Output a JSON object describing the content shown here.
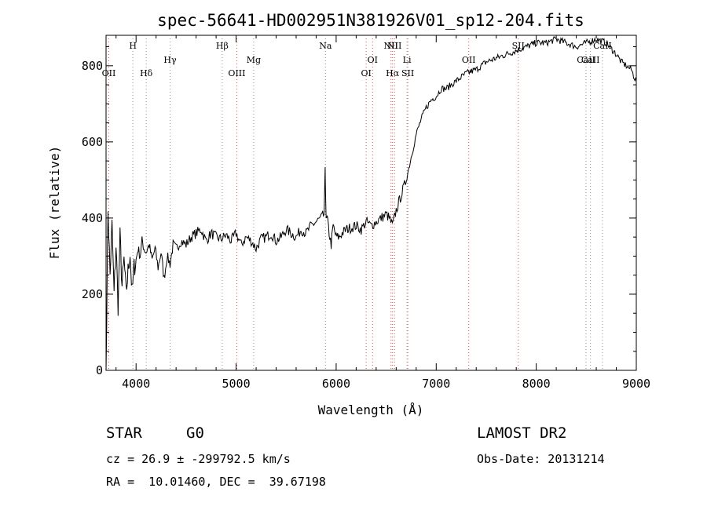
{
  "chart_data": {
    "type": "line",
    "title": "spec-56641-HD002951N381926V01_sp12-204.fits",
    "xlabel": "Wavelength (Å)",
    "ylabel": "Flux (relative)",
    "xlim": [
      3700,
      9000
    ],
    "ylim": [
      0,
      880
    ],
    "x_ticks": [
      4000,
      5000,
      6000,
      7000,
      8000,
      9000
    ],
    "y_ticks": [
      0,
      200,
      400,
      600,
      800
    ],
    "grid": false,
    "series": [
      {
        "x": [
          3700,
          3720,
          3740,
          3760,
          3780,
          3800,
          3820,
          3840,
          3860,
          3880,
          3900,
          3920,
          3940,
          3960,
          3980,
          4000,
          4020,
          4040,
          4060,
          4080,
          4100,
          4130,
          4160,
          4190,
          4220,
          4250,
          4280,
          4310,
          4340,
          4370,
          4400,
          4450,
          4500,
          4550,
          4600,
          4650,
          4700,
          4750,
          4800,
          4850,
          4900,
          4950,
          5000,
          5050,
          5100,
          5150,
          5200,
          5250,
          5300,
          5350,
          5400,
          5450,
          5500,
          5550,
          5600,
          5650,
          5700,
          5750,
          5800,
          5850,
          5880,
          5890,
          5895,
          5900,
          5910,
          5930,
          5950,
          5970,
          6000,
          6030,
          6060,
          6100,
          6150,
          6200,
          6250,
          6300,
          6350,
          6400,
          6450,
          6500,
          6530,
          6563,
          6600,
          6650,
          6700,
          6750,
          6800,
          6850,
          6900,
          6950,
          7000,
          7050,
          7100,
          7150,
          7200,
          7300,
          7400,
          7500,
          7600,
          7700,
          7800,
          7900,
          8000,
          8100,
          8200,
          8300,
          8400,
          8500,
          8600,
          8700,
          8800,
          8850,
          8900,
          8950,
          8980,
          9000
        ],
        "y": [
          0,
          430,
          250,
          380,
          200,
          330,
          170,
          350,
          220,
          290,
          200,
          260,
          310,
          200,
          270,
          290,
          320,
          300,
          340,
          320,
          310,
          330,
          290,
          320,
          270,
          310,
          240,
          300,
          280,
          330,
          320,
          340,
          330,
          350,
          360,
          370,
          340,
          360,
          350,
          345,
          355,
          340,
          360,
          330,
          350,
          340,
          320,
          345,
          350,
          360,
          340,
          350,
          370,
          360,
          350,
          370,
          360,
          380,
          390,
          400,
          410,
          520,
          460,
          390,
          400,
          360,
          330,
          380,
          350,
          350,
          360,
          370,
          375,
          380,
          370,
          390,
          380,
          390,
          400,
          410,
          400,
          380,
          420,
          460,
          500,
          560,
          620,
          660,
          690,
          710,
          720,
          740,
          740,
          750,
          760,
          780,
          790,
          810,
          820,
          830,
          840,
          850,
          860,
          860,
          870,
          860,
          850,
          860,
          870,
          860,
          830,
          810,
          800,
          790,
          770,
          760
        ]
      }
    ],
    "spectral_lines": [
      {
        "label": "OII",
        "x": 3727,
        "row": "low"
      },
      {
        "label": "H",
        "x": 3968,
        "row": "high"
      },
      {
        "label": "Hδ",
        "x": 4102,
        "row": "low"
      },
      {
        "label": "Hγ",
        "x": 4340,
        "row": "mid"
      },
      {
        "label": "Hβ",
        "x": 4861,
        "row": "high"
      },
      {
        "label": "OIII",
        "x": 5007,
        "row": "low"
      },
      {
        "label": "Mg",
        "x": 5175,
        "row": "mid"
      },
      {
        "label": "Na",
        "x": 5893,
        "row": "high"
      },
      {
        "label": "OI",
        "x": 6300,
        "row": "low"
      },
      {
        "label": "OI",
        "x": 6364,
        "row": "mid"
      },
      {
        "label": "NII",
        "x": 6548,
        "row": "high"
      },
      {
        "label": "Hα",
        "x": 6563,
        "row": "low"
      },
      {
        "label": "NII",
        "x": 6583,
        "row": "high"
      },
      {
        "label": "Li",
        "x": 6708,
        "row": "mid"
      },
      {
        "label": "SII",
        "x": 6716,
        "row": "low"
      },
      {
        "label": "OII",
        "x": 7325,
        "row": "mid"
      },
      {
        "label": "SII",
        "x": 7820,
        "row": "high"
      },
      {
        "label": "CaII",
        "x": 8498,
        "row": "mid"
      },
      {
        "label": "CaII",
        "x": 8542,
        "row": "mid"
      },
      {
        "label": "CaII",
        "x": 8662,
        "row": "high"
      }
    ]
  },
  "info": {
    "object_class": "STAR",
    "subclass": "G0",
    "survey": "LAMOST DR2",
    "velocity": "cz = 26.9 ± -299792.5 km/s",
    "obs_date": "Obs-Date: 20131214",
    "coords": "RA =  10.01460, DEC =  39.67198"
  },
  "colors": {
    "emission_line": "#e05050",
    "absorption_line": "#909090",
    "spectrum": "#000000"
  }
}
